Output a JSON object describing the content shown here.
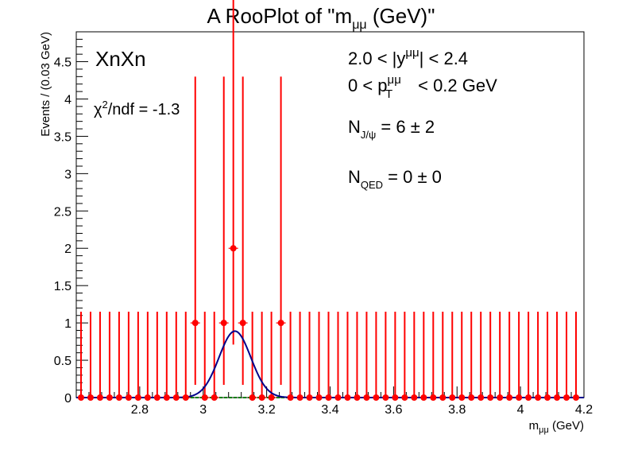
{
  "chart_data": {
    "type": "scatter",
    "title": {
      "main": "A RooPlot of \"m",
      "sub": "μμ",
      "tail": " (GeV)\""
    },
    "xlabel": {
      "main": "m",
      "sub": "μμ",
      "tail": " (GeV)"
    },
    "ylabel": "Events / (0.03 GeV)",
    "xlim": [
      2.6,
      4.2
    ],
    "ylim": [
      0,
      4.9
    ],
    "xticks": [
      2.8,
      3.0,
      3.2,
      3.4,
      3.6,
      3.8,
      4.0,
      4.2
    ],
    "xtick_labels": [
      "2.8",
      "3",
      "3.2",
      "3.4",
      "3.6",
      "3.8",
      "4",
      "4.2"
    ],
    "yticks": [
      0,
      0.5,
      1,
      1.5,
      2,
      2.5,
      3,
      3.5,
      4,
      4.5
    ],
    "ytick_labels": [
      "0",
      "0.5",
      "1",
      "1.5",
      "2",
      "2.5",
      "3",
      "3.5",
      "4",
      "4.5"
    ],
    "bin_width": 0.03,
    "first_bin_center": 2.615,
    "data_points": [
      0,
      0,
      0,
      0,
      0,
      0,
      0,
      0,
      0,
      0,
      0,
      0,
      1,
      0,
      0,
      1,
      2,
      1,
      0,
      0,
      0,
      1,
      0,
      0,
      0,
      0,
      0,
      0,
      0,
      0,
      0,
      0,
      0,
      0,
      0,
      0,
      0,
      0,
      0,
      0,
      0,
      0,
      0,
      0,
      0,
      0,
      0,
      0,
      0,
      0,
      0,
      0,
      0,
      0
    ],
    "error_up_zero": 1.15,
    "error_up_one": 3.3,
    "error_up_two": 4.65,
    "error_down_one": 0.83,
    "error_down_two": 1.29,
    "fit": {
      "name": "total",
      "type": "gaussian",
      "amplitude": 0.89,
      "mean": 3.1,
      "sigma": 0.05,
      "color": "#00008b"
    },
    "background": {
      "color": "#008000",
      "value": 0
    },
    "marker_color": "#ff0000"
  },
  "annotations": {
    "tag": "XnXn",
    "chi2": {
      "symbol": "χ",
      "sup": "2",
      "tail": "/ndf = -1.3"
    },
    "rapidity": {
      "pre": "2.0 < |y",
      "sup": "μμ",
      "post": "| < 2.4"
    },
    "pt": {
      "pre": "0 < p",
      "sup": "μμ",
      "sub": "T",
      "post": " < 0.2 GeV"
    },
    "njpsi": {
      "pre": "N",
      "sub": "J/ψ",
      "post": " = 6 ± 2"
    },
    "nqed": {
      "pre": "N",
      "sub": "QED",
      "post": " = 0 ± 0"
    }
  }
}
